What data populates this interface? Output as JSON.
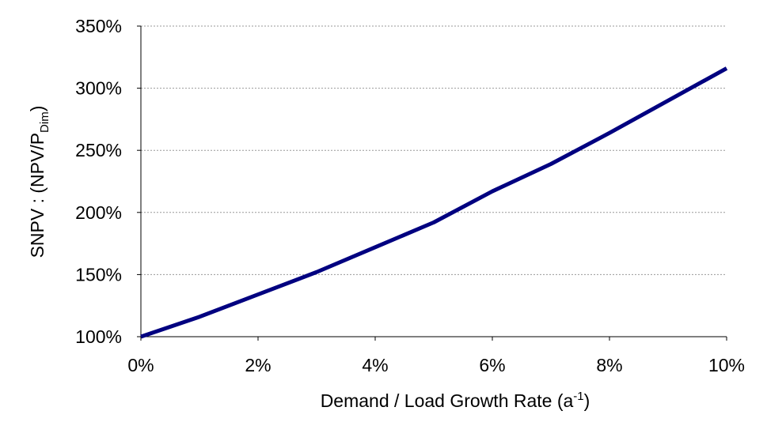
{
  "chart_data": {
    "type": "line",
    "x_label": [
      "Demand / Load Growth Rate (a",
      "-1",
      ")"
    ],
    "y_label": [
      "SNPV : (NPV/P",
      "Dim",
      ")"
    ],
    "x": [
      0,
      1,
      2,
      3,
      4,
      5,
      6,
      7,
      8,
      9,
      10
    ],
    "series": [
      {
        "color": "#000080",
        "values": [
          100,
          116,
          134,
          152,
          172,
          192,
          217,
          239,
          264,
          290,
          316
        ]
      }
    ],
    "xlim": [
      0,
      10
    ],
    "xticks": [
      {
        "value": 0,
        "label": "0%"
      },
      {
        "value": 2,
        "label": "2%"
      },
      {
        "value": 4,
        "label": "4%"
      },
      {
        "value": 6,
        "label": "6%"
      },
      {
        "value": 8,
        "label": "8%"
      },
      {
        "value": 10,
        "label": "10%"
      }
    ],
    "ylim": [
      100,
      350
    ],
    "yticks": [
      {
        "value": 100,
        "label": "100%"
      },
      {
        "value": 150,
        "label": "150%"
      },
      {
        "value": 200,
        "label": "200%"
      },
      {
        "value": 250,
        "label": "250%"
      },
      {
        "value": 300,
        "label": "300%"
      },
      {
        "value": 350,
        "label": "350%"
      }
    ],
    "grid": true
  }
}
